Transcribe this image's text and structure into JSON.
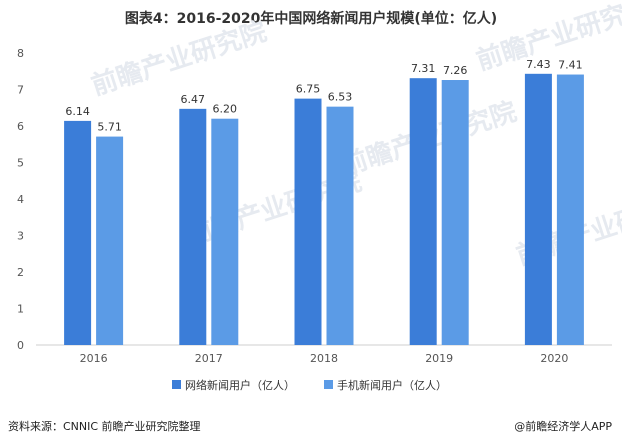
{
  "chart_data": {
    "type": "bar",
    "title": "图表4：2016-2020年中国网络新闻用户规模(单位：亿人)",
    "categories": [
      "2016",
      "2017",
      "2018",
      "2019",
      "2020"
    ],
    "series": [
      {
        "name": "网络新闻用户（亿人）",
        "values": [
          6.14,
          6.47,
          6.75,
          7.31,
          7.43
        ],
        "labels": [
          "6.14",
          "6.47",
          "6.75",
          "7.31",
          "7.43"
        ],
        "color": "#3b7dd8"
      },
      {
        "name": "手机新闻用户（亿人）",
        "values": [
          5.71,
          6.2,
          6.53,
          7.26,
          7.41
        ],
        "labels": [
          "5.71",
          "6.20",
          "6.53",
          "7.26",
          "7.41"
        ],
        "color": "#5b9be6"
      }
    ],
    "ylim": [
      0,
      8
    ],
    "yticks": [
      "0",
      "1",
      "2",
      "3",
      "4",
      "5",
      "6",
      "7",
      "8"
    ],
    "grid": false,
    "legend": "bottom"
  },
  "footer": {
    "source": "资料来源：CNNIC 前瞻产业研究院整理",
    "brand": "@前瞻经济学人APP"
  },
  "watermark": {
    "text": "前瞻产业研究院"
  }
}
